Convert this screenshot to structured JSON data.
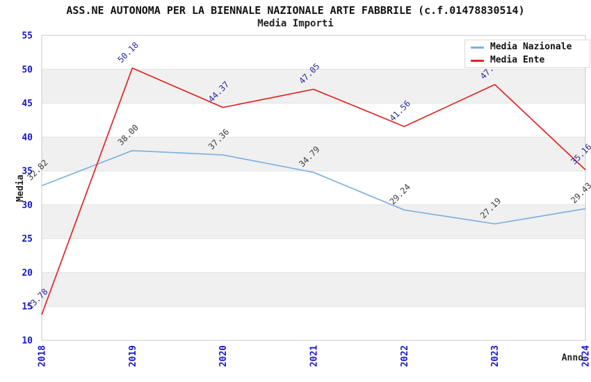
{
  "title": "ASS.NE AUTONOMA PER LA BIENNALE NAZIONALE ARTE FABBRILE (c.f.01478830514)",
  "subtitle": "Media Importi",
  "axes": {
    "x_label": "Anno",
    "y_label": "Media",
    "y_ticks": [
      55,
      50,
      45,
      40,
      35,
      30,
      25,
      20,
      15,
      10
    ],
    "x_ticks": [
      "2018",
      "2019",
      "2020",
      "2021",
      "2022",
      "2023",
      "2024"
    ]
  },
  "legend": {
    "position": "top-right",
    "entries": [
      "Media Nazionale",
      "Media Ente"
    ]
  },
  "chart_data": {
    "type": "line",
    "categories": [
      "2018",
      "2019",
      "2020",
      "2021",
      "2022",
      "2023",
      "2024"
    ],
    "series": [
      {
        "name": "Media Nazionale",
        "color": "#7cb0e2",
        "label_color": "#3c3c3c",
        "values": [
          32.82,
          38.0,
          37.36,
          34.79,
          29.24,
          27.19,
          29.43
        ]
      },
      {
        "name": "Media Ente",
        "color": "#e02421",
        "label_color": "#28289b",
        "values": [
          13.78,
          50.18,
          44.37,
          47.05,
          41.56,
          47.75,
          35.16
        ]
      }
    ],
    "title": "ASS.NE AUTONOMA PER LA BIENNALE NAZIONALE ARTE FABBRILE (c.f.01478830514)",
    "subtitle": "Media Importi",
    "xlabel": "Anno",
    "ylabel": "Media",
    "ylim": [
      10,
      55
    ],
    "grid": "horizontal-bands",
    "point_labels": "two-decimals-rotated-45",
    "legend_position": "top-right"
  },
  "colors": {
    "tick_label": "#1414cc",
    "band_gray": "#f0f0f0",
    "gridline": "#e2e2e2",
    "plot_border": "#c8c8c8",
    "axis_title": "#222222",
    "title_text": "#111111"
  }
}
